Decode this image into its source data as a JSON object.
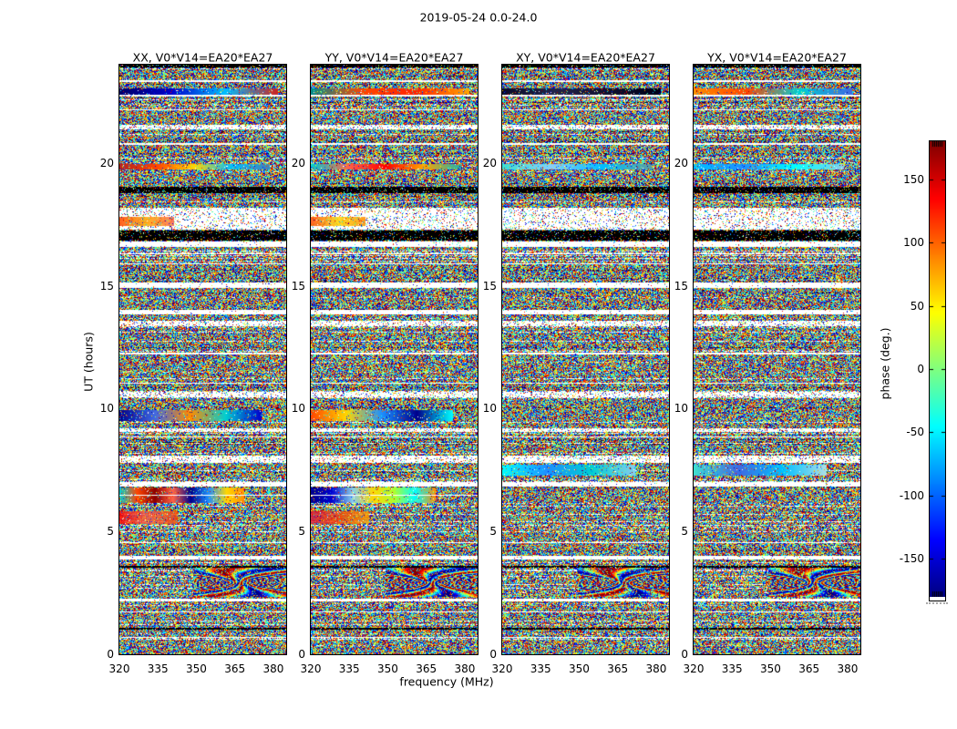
{
  "figure": {
    "title": "2019-05-24 0.0-24.0",
    "xlabel": "frequency (MHz)",
    "ylabel": "UT (hours)",
    "colorbar_label": "phase (deg.)"
  },
  "chart_data": {
    "type": "heatmap",
    "title": "2019-05-24 0.0-24.0",
    "xlabel": "frequency (MHz)",
    "ylabel": "UT (hours)",
    "xlim": [
      320,
      385
    ],
    "ylim": [
      0,
      24
    ],
    "xticks": [
      320,
      335,
      350,
      365,
      380
    ],
    "yticks": [
      0,
      5,
      10,
      15,
      20
    ],
    "grid": false,
    "panels": [
      {
        "label": "XX, V0*V14=EA20*EA27"
      },
      {
        "label": "YY, V0*V14=EA20*EA27"
      },
      {
        "label": "XY, V0*V14=EA20*EA27"
      },
      {
        "label": "YX, V0*V14=EA20*EA27"
      }
    ],
    "colorbar": {
      "label": "phase (deg.)",
      "ticks": [
        150,
        100,
        50,
        0,
        -50,
        -100,
        -150
      ],
      "range": [
        -180,
        180
      ],
      "colormap": "jet",
      "colormap_stops": [
        "#00007f",
        "#0000ff",
        "#00ffff",
        "#7fff7f",
        "#ffff00",
        "#ff0000",
        "#7f0000"
      ],
      "tick_side": "left",
      "label_side": "left"
    },
    "data_summary": "Interferometric visibility phase vs frequency (320-385 MHz) and time (UT 0-24 h) for baseline V0*V14 = EA20*EA27, four polarisation products. Values are uniformly distributed random phase noise in [-180,180] deg, with shared horizontal dropout rows (white), flagged rows (black), washed-out sparse rows, coherent rainbow phase smears (strongest in XX and YY near UT 6.2-6.8, 9.5-9.9, 19.7-20.0, 22.8-23.05, and 5.3-5.8 left edge), a cyan smear in XY/YX near UT 7.3-7.7, and a wavy interference patch in all panels near UT 2.3-3.5.",
    "bands": [
      {
        "t0": 23.88,
        "t1": 24.0,
        "type": "dark"
      },
      {
        "t0": 23.3,
        "t1": 23.36,
        "type": "white"
      },
      {
        "t0": 22.78,
        "t1": 23.05,
        "type": "streak",
        "width_frac": 0.95,
        "colors": {
          "0": [
            "#000066",
            "#0000cd",
            "#00bfff",
            "#cc2222"
          ],
          "1": [
            "#008b8b",
            "#ff4500",
            "#ff2200",
            "#ffa500"
          ],
          "2": [
            "#0a0a2a",
            "#24244a",
            "#101030",
            "#000018"
          ],
          "3": [
            "#ff8c00",
            "#ff4500",
            "#00ced1",
            "#4169e1"
          ]
        }
      },
      {
        "t0": 22.72,
        "t1": 22.76,
        "type": "white"
      },
      {
        "t0": 22.16,
        "t1": 22.2,
        "type": "white"
      },
      {
        "t0": 21.37,
        "t1": 21.55,
        "type": "sparse"
      },
      {
        "t0": 20.75,
        "t1": 20.8,
        "type": "white"
      },
      {
        "t0": 19.73,
        "t1": 19.96,
        "type": "streak",
        "width_frac": 0.9,
        "colors": {
          "0": [
            "#b22222",
            "#ff4500",
            "#ffd700",
            "#00bfff",
            "#4682b4"
          ],
          "1": [
            "#00ced1",
            "#ff6347",
            "#ff0000",
            "#ffa500",
            "#20b2aa"
          ],
          "2": [
            "#40e0d0",
            "#87cefa",
            "#00bfff",
            "#5f9ea0"
          ],
          "3": [
            "#00bfff",
            "#1e90ff",
            "#00ffff",
            "#87ceeb"
          ]
        }
      },
      {
        "t0": 18.77,
        "t1": 19.03,
        "type": "dark"
      },
      {
        "t0": 17.29,
        "t1": 18.18,
        "type": "sparse"
      },
      {
        "t0": 17.45,
        "t1": 17.8,
        "type": "streak",
        "panels": [
          0,
          1
        ],
        "width_frac": 0.33,
        "alpha": 0.85,
        "colors": {
          "0": [
            "#ff4500",
            "#ffa500",
            "#ff6347"
          ],
          "1": [
            "#ff4500",
            "#ffd700",
            "#ff8c00"
          ]
        }
      },
      {
        "t0": 16.84,
        "t1": 17.25,
        "type": "dark"
      },
      {
        "t0": 16.58,
        "t1": 16.8,
        "type": "white"
      },
      {
        "t0": 16.3,
        "t1": 16.34,
        "type": "white"
      },
      {
        "t0": 15.86,
        "t1": 15.9,
        "type": "white"
      },
      {
        "t0": 14.91,
        "t1": 15.13,
        "type": "white"
      },
      {
        "t0": 13.84,
        "t1": 14.02,
        "type": "white"
      },
      {
        "t0": 13.35,
        "t1": 13.58,
        "type": "sparse"
      },
      {
        "t0": 12.22,
        "t1": 12.26,
        "type": "white"
      },
      {
        "t0": 11.03,
        "t1": 11.07,
        "type": "white"
      },
      {
        "t0": 10.46,
        "t1": 10.68,
        "type": "sparse"
      },
      {
        "t0": 9.5,
        "t1": 9.94,
        "type": "streak",
        "panels": [
          0,
          1
        ],
        "width_frac": 0.85,
        "colors": {
          "0": [
            "#00008b",
            "#4169e1",
            "#ff8c00",
            "#00ced1",
            "#0000cd"
          ],
          "1": [
            "#ff4500",
            "#ffd700",
            "#1e90ff",
            "#00008b",
            "#00ffff"
          ]
        }
      },
      {
        "t0": 9.05,
        "t1": 9.2,
        "type": "sparse"
      },
      {
        "t0": 8.81,
        "t1": 8.85,
        "type": "white"
      },
      {
        "t0": 7.79,
        "t1": 8.09,
        "type": "sparse"
      },
      {
        "t0": 7.27,
        "t1": 7.71,
        "type": "streak",
        "panels": [
          2,
          3
        ],
        "width_frac": 0.8,
        "colors": {
          "2": [
            "#00ffff",
            "#1e90ff",
            "#00ced1",
            "#87ceeb"
          ],
          "3": [
            "#40e0d0",
            "#4169e1",
            "#00bfff",
            "#b0e0e6"
          ]
        }
      },
      {
        "t0": 6.83,
        "t1": 7.01,
        "type": "white"
      },
      {
        "t0": 6.16,
        "t1": 6.79,
        "type": "streak",
        "panels": [
          0,
          1
        ],
        "width_frac": 0.75,
        "colors": {
          "0": [
            "#00ced1",
            "#ff4500",
            "#8b0000",
            "#ff6347",
            "#00008b",
            "#1e90ff",
            "#ffd700",
            "#ff8c00"
          ],
          "1": [
            "#00008b",
            "#0000cd",
            "#87ceeb",
            "#ffd700",
            "#adff2f",
            "#00ffff",
            "#ff8c00"
          ]
        }
      },
      {
        "t0": 6.45,
        "t1": 6.49,
        "type": "white",
        "panels": [
          0,
          1
        ]
      },
      {
        "t0": 5.3,
        "t1": 5.82,
        "type": "streak",
        "panels": [
          0,
          1
        ],
        "width_frac": 0.35,
        "alpha": 0.8,
        "colors": {
          "0": [
            "#ff0000",
            "#ff6347",
            "#ff4500"
          ],
          "1": [
            "#dc143c",
            "#ff4500",
            "#ffa500"
          ]
        }
      },
      {
        "t0": 4.51,
        "t1": 4.55,
        "type": "white"
      },
      {
        "t0": 3.86,
        "t1": 4.01,
        "type": "white"
      },
      {
        "t0": 3.54,
        "t1": 3.58,
        "type": "dark"
      },
      {
        "t0": 2.34,
        "t1": 3.52,
        "type": "wavy"
      },
      {
        "t0": 2.15,
        "t1": 2.26,
        "type": "white"
      },
      {
        "t0": 1.69,
        "t1": 1.73,
        "type": "white"
      },
      {
        "t0": 1.02,
        "t1": 1.06,
        "type": "dark"
      },
      {
        "t0": 0.65,
        "t1": 0.69,
        "type": "white"
      }
    ]
  }
}
